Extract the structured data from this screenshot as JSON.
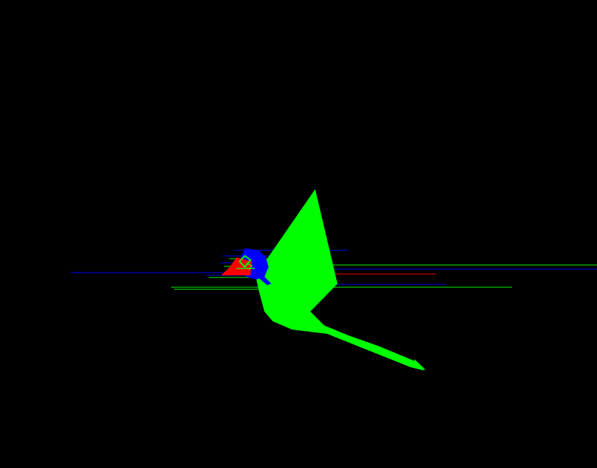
{
  "scene": {
    "background_color": "#000000",
    "colors": {
      "green": "#00ff00",
      "blue": "#0000ff",
      "red": "#ff0000"
    }
  }
}
